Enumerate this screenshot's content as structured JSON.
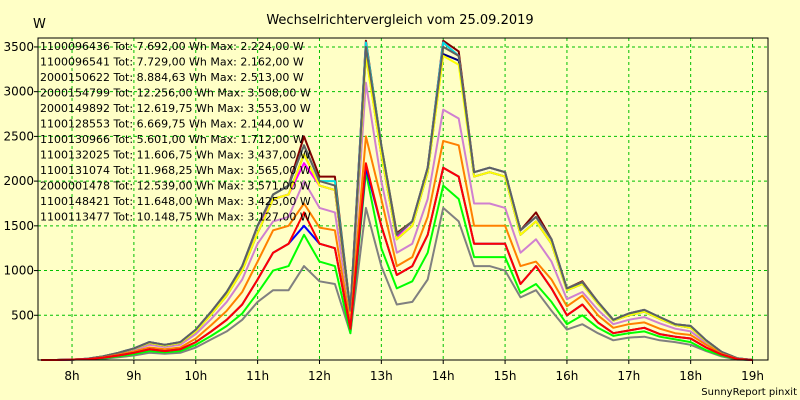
{
  "chart_data": {
    "type": "line",
    "title": "Wechselrichtervergleich vom 25.09.2019",
    "ylabel": "W",
    "footer": "SunnyReport pinxit",
    "ylim": [
      0,
      3600
    ],
    "xlim": [
      7.45,
      19.25
    ],
    "yticks": [
      500,
      1000,
      1500,
      2000,
      2500,
      3000,
      3500
    ],
    "xticks": [
      {
        "v": 8,
        "label": "8h"
      },
      {
        "v": 9,
        "label": "9h"
      },
      {
        "v": 10,
        "label": "10h"
      },
      {
        "v": 11,
        "label": "11h"
      },
      {
        "v": 12,
        "label": "12h"
      },
      {
        "v": 13,
        "label": "13h"
      },
      {
        "v": 14,
        "label": "14h"
      },
      {
        "v": 15,
        "label": "15h"
      },
      {
        "v": 16,
        "label": "16h"
      },
      {
        "v": 17,
        "label": "17h"
      },
      {
        "v": 18,
        "label": "18h"
      },
      {
        "v": 19,
        "label": "19h"
      }
    ],
    "grid": true,
    "legend_position": "top-left",
    "x": [
      7.5,
      7.75,
      8,
      8.25,
      8.5,
      8.75,
      9,
      9.25,
      9.5,
      9.75,
      10,
      10.25,
      10.5,
      10.75,
      11,
      11.25,
      11.5,
      11.75,
      12,
      12.25,
      12.5,
      12.75,
      13,
      13.25,
      13.5,
      13.75,
      14,
      14.25,
      14.5,
      14.75,
      15,
      15.25,
      15.5,
      15.75,
      16,
      16.25,
      16.5,
      16.75,
      17,
      17.25,
      17.5,
      17.75,
      18,
      18.25,
      18.5,
      18.75,
      19
    ],
    "series": [
      {
        "name": "1100096436",
        "label": "1100096436 Tot: 7.692,00 Wh Max: 2.224,00 W",
        "color": "#ff0000",
        "values": [
          0,
          0,
          5,
          10,
          25,
          50,
          80,
          120,
          100,
          120,
          200,
          320,
          450,
          620,
          900,
          1200,
          1300,
          1650,
          1300,
          1250,
          350,
          2200,
          1500,
          950,
          1050,
          1400,
          2150,
          2050,
          1300,
          1300,
          1300,
          850,
          1050,
          800,
          500,
          620,
          420,
          300,
          330,
          360,
          290,
          260,
          240,
          140,
          60,
          10,
          0
        ]
      },
      {
        "name": "1100096541",
        "label": "1100096541 Tot: 7.729,00 Wh Max: 2.162,00 W",
        "color": "#0000ff",
        "values": [
          0,
          0,
          5,
          10,
          25,
          50,
          80,
          120,
          100,
          120,
          200,
          320,
          450,
          620,
          900,
          1200,
          1300,
          1500,
          1300,
          1250,
          350,
          2150,
          1500,
          950,
          1050,
          1400,
          2150,
          2050,
          1300,
          1300,
          1300,
          850,
          1050,
          800,
          500,
          620,
          420,
          300,
          330,
          360,
          290,
          260,
          240,
          140,
          60,
          10,
          0
        ]
      },
      {
        "name": "2000150622",
        "label": "2000150622 Tot: 8.884,63 Wh Max: 2.513,00 W",
        "color": "#ff8000",
        "values": [
          0,
          0,
          5,
          10,
          30,
          60,
          95,
          140,
          120,
          140,
          240,
          390,
          550,
          760,
          1100,
          1450,
          1500,
          1750,
          1480,
          1450,
          400,
          2500,
          1800,
          1050,
          1150,
          1600,
          2450,
          2400,
          1500,
          1500,
          1500,
          1050,
          1100,
          900,
          600,
          720,
          500,
          360,
          400,
          420,
          350,
          300,
          280,
          170,
          70,
          15,
          0
        ]
      },
      {
        "name": "2000154799",
        "label": "2000154799 Tot: 12.256,00 Wh Max: 3.508,00 W",
        "color": "#606060",
        "values": [
          0,
          0,
          5,
          15,
          40,
          80,
          130,
          200,
          170,
          200,
          340,
          540,
          760,
          1050,
          1500,
          1850,
          1950,
          2400,
          2000,
          1950,
          550,
          3500,
          2400,
          1400,
          1550,
          2150,
          3500,
          3400,
          2100,
          2150,
          2100,
          1450,
          1600,
          1350,
          800,
          870,
          650,
          450,
          520,
          560,
          480,
          400,
          380,
          220,
          90,
          20,
          0
        ]
      },
      {
        "name": "2000149892",
        "label": "2000149892 Tot: 12.619,75 Wh Max: 3.553,00 W",
        "color": "#00e0e0",
        "values": [
          0,
          0,
          5,
          15,
          40,
          80,
          130,
          200,
          170,
          200,
          340,
          540,
          760,
          1050,
          1500,
          1850,
          1950,
          2400,
          2000,
          2000,
          550,
          3550,
          2400,
          1400,
          1550,
          2150,
          3550,
          3400,
          2100,
          2150,
          2100,
          1450,
          1600,
          1350,
          800,
          870,
          650,
          450,
          520,
          560,
          480,
          400,
          380,
          220,
          90,
          20,
          0
        ]
      },
      {
        "name": "1100128553",
        "label": "1100128553 Tot: 6.669,75 Wh Max: 2.144,00 W",
        "color": "#00ff00",
        "values": [
          0,
          0,
          5,
          10,
          20,
          40,
          65,
          100,
          85,
          100,
          170,
          270,
          380,
          520,
          750,
          1000,
          1050,
          1400,
          1100,
          1050,
          300,
          2100,
          1250,
          800,
          880,
          1200,
          1950,
          1800,
          1150,
          1150,
          1150,
          750,
          850,
          650,
          400,
          500,
          360,
          270,
          300,
          320,
          260,
          230,
          200,
          110,
          50,
          8,
          0
        ]
      },
      {
        "name": "1100130966",
        "label": "1100130966 Tot: 5.601,00 Wh Max: 1.712,00 W",
        "color": "#808080",
        "values": [
          0,
          0,
          5,
          8,
          15,
          30,
          50,
          80,
          70,
          80,
          140,
          230,
          320,
          450,
          650,
          780,
          780,
          1050,
          880,
          850,
          300,
          1700,
          1050,
          620,
          650,
          900,
          1700,
          1550,
          1050,
          1050,
          1000,
          700,
          780,
          550,
          340,
          400,
          300,
          220,
          250,
          260,
          220,
          200,
          170,
          100,
          40,
          5,
          0
        ]
      },
      {
        "name": "1100132025",
        "label": "1100132025 Tot: 11.606,75 Wh Max: 3.437,00 W",
        "color": "#ffff00",
        "values": [
          0,
          0,
          5,
          15,
          40,
          80,
          125,
          190,
          160,
          190,
          320,
          510,
          720,
          1000,
          1420,
          1800,
          1850,
          2300,
          1950,
          1900,
          520,
          3400,
          2300,
          1350,
          1500,
          2100,
          3400,
          3300,
          2050,
          2100,
          2050,
          1400,
          1550,
          1300,
          780,
          850,
          630,
          440,
          500,
          540,
          460,
          390,
          360,
          210,
          85,
          18,
          0
        ]
      },
      {
        "name": "1100131074",
        "label": "1100131074 Tot: 11.968,25 Wh Max: 3.565,00 W",
        "color": "#ff00ff",
        "values": [
          0,
          0,
          5,
          15,
          40,
          80,
          130,
          200,
          170,
          200,
          340,
          540,
          760,
          1050,
          1500,
          1800,
          1850,
          2200,
          1950,
          1900,
          550,
          3550,
          2350,
          1380,
          1550,
          2150,
          3550,
          3400,
          2100,
          2150,
          2100,
          1450,
          1600,
          1350,
          800,
          870,
          650,
          450,
          520,
          560,
          480,
          400,
          380,
          220,
          90,
          20,
          0
        ]
      },
      {
        "name": "2000001478",
        "label": "2000001478 Tot: 12.539,00 Wh Max: 3.571,00 W",
        "color": "#800000",
        "values": [
          0,
          0,
          5,
          15,
          40,
          80,
          130,
          200,
          170,
          200,
          340,
          540,
          760,
          1050,
          1500,
          1850,
          1950,
          2500,
          2050,
          2050,
          550,
          3570,
          2400,
          1420,
          1550,
          2150,
          3570,
          3450,
          2100,
          2150,
          2100,
          1450,
          1650,
          1350,
          800,
          880,
          650,
          450,
          520,
          560,
          480,
          400,
          380,
          220,
          90,
          20,
          0
        ]
      },
      {
        "name": "1100148421",
        "label": "1100148421 Tot: 11.648,00 Wh Max: 3.425,00 W",
        "color": "#000080",
        "values": [
          0,
          0,
          5,
          15,
          40,
          80,
          125,
          190,
          160,
          190,
          320,
          510,
          720,
          1000,
          1420,
          1800,
          1850,
          2300,
          1950,
          1900,
          520,
          3420,
          2300,
          1350,
          1500,
          2100,
          3420,
          3350,
          2050,
          2100,
          2050,
          1400,
          1550,
          1300,
          780,
          850,
          630,
          440,
          500,
          540,
          460,
          390,
          360,
          210,
          85,
          18,
          0
        ]
      },
      {
        "name": "1100113477",
        "label": "1100113477 Tot: 10.148,75 Wh Max: 3.127,00 W",
        "color": "#d080d0",
        "values": [
          0,
          0,
          5,
          12,
          35,
          70,
          110,
          170,
          145,
          170,
          290,
          460,
          650,
          900,
          1300,
          1550,
          1600,
          2000,
          1700,
          1650,
          500,
          3100,
          2000,
          1200,
          1300,
          1800,
          2800,
          2700,
          1750,
          1750,
          1700,
          1200,
          1350,
          1100,
          680,
          760,
          560,
          400,
          450,
          480,
          410,
          350,
          320,
          190,
          75,
          15,
          0
        ]
      }
    ]
  }
}
